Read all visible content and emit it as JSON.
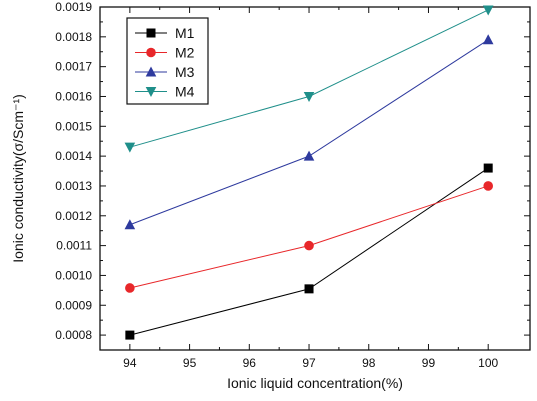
{
  "chart_data": {
    "type": "line",
    "xlabel": "Ionic liquid concentration(%)",
    "ylabel": "Ionic conductivity(σ/Scm⁻¹)",
    "xlim": [
      93.5,
      100.7
    ],
    "ylim": [
      0.00075,
      0.0019
    ],
    "xticks": [
      94,
      95,
      96,
      97,
      98,
      99,
      100
    ],
    "yticks": [
      0.0008,
      0.0009,
      0.001,
      0.0011,
      0.0012,
      0.0013,
      0.0014,
      0.0015,
      0.0016,
      0.0017,
      0.0018,
      0.0019
    ],
    "legend_position": "top-left",
    "grid": false,
    "series": [
      {
        "name": "M1",
        "color": "#000000",
        "marker": "square",
        "x": [
          94,
          97,
          100
        ],
        "y": [
          0.0008,
          0.000955,
          0.00136
        ]
      },
      {
        "name": "M2",
        "color": "#e8272a",
        "marker": "circle",
        "x": [
          94,
          97,
          100
        ],
        "y": [
          0.000958,
          0.0011,
          0.0013
        ]
      },
      {
        "name": "M3",
        "color": "#2e3a9e",
        "marker": "triangle-up",
        "x": [
          94,
          97,
          100
        ],
        "y": [
          0.00117,
          0.0014,
          0.00179
        ]
      },
      {
        "name": "M4",
        "color": "#1f8f8a",
        "marker": "triangle-down",
        "x": [
          94,
          97,
          100
        ],
        "y": [
          0.00143,
          0.0016,
          0.00189
        ]
      }
    ]
  }
}
